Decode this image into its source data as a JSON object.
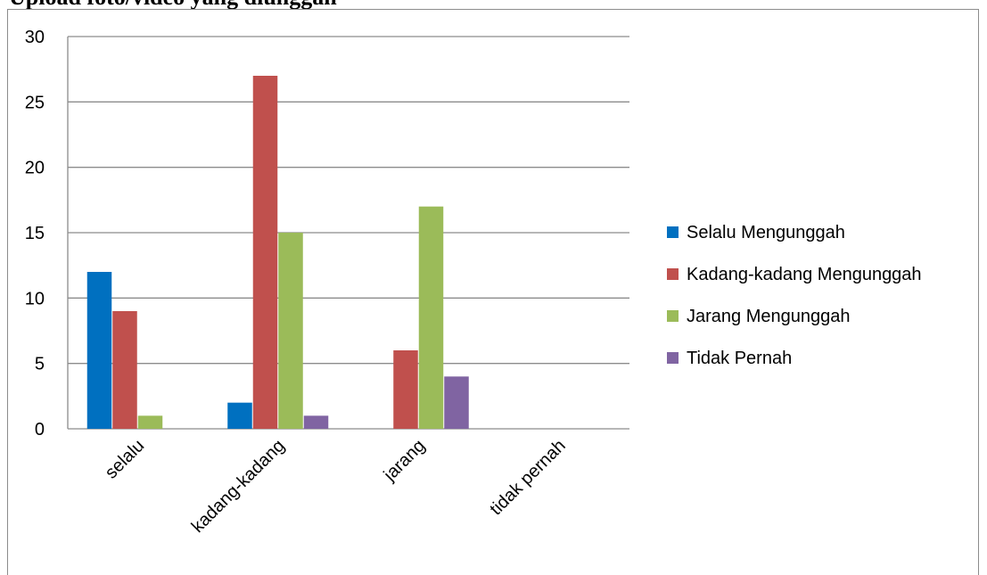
{
  "title": "Upload foto/video yang diunggah",
  "chart_data": {
    "type": "bar",
    "categories": [
      "selalu",
      "kadang-kadang",
      "jarang",
      "tidak pernah"
    ],
    "series": [
      {
        "name": "Selalu Mengunggah",
        "color": "#0070c0",
        "values": [
          12,
          2,
          0,
          0
        ]
      },
      {
        "name": "Kadang-kadang Mengunggah",
        "color": "#c0504d",
        "values": [
          9,
          27,
          6,
          0
        ]
      },
      {
        "name": "Jarang Mengunggah",
        "color": "#9bbb59",
        "values": [
          1,
          15,
          17,
          0
        ]
      },
      {
        "name": "Tidak Pernah",
        "color": "#8064a2",
        "values": [
          0,
          1,
          4,
          0
        ]
      }
    ],
    "yticks": [
      0,
      5,
      10,
      15,
      20,
      25,
      30
    ],
    "ylim": [
      0,
      30
    ],
    "grid": true,
    "legend": "right"
  }
}
